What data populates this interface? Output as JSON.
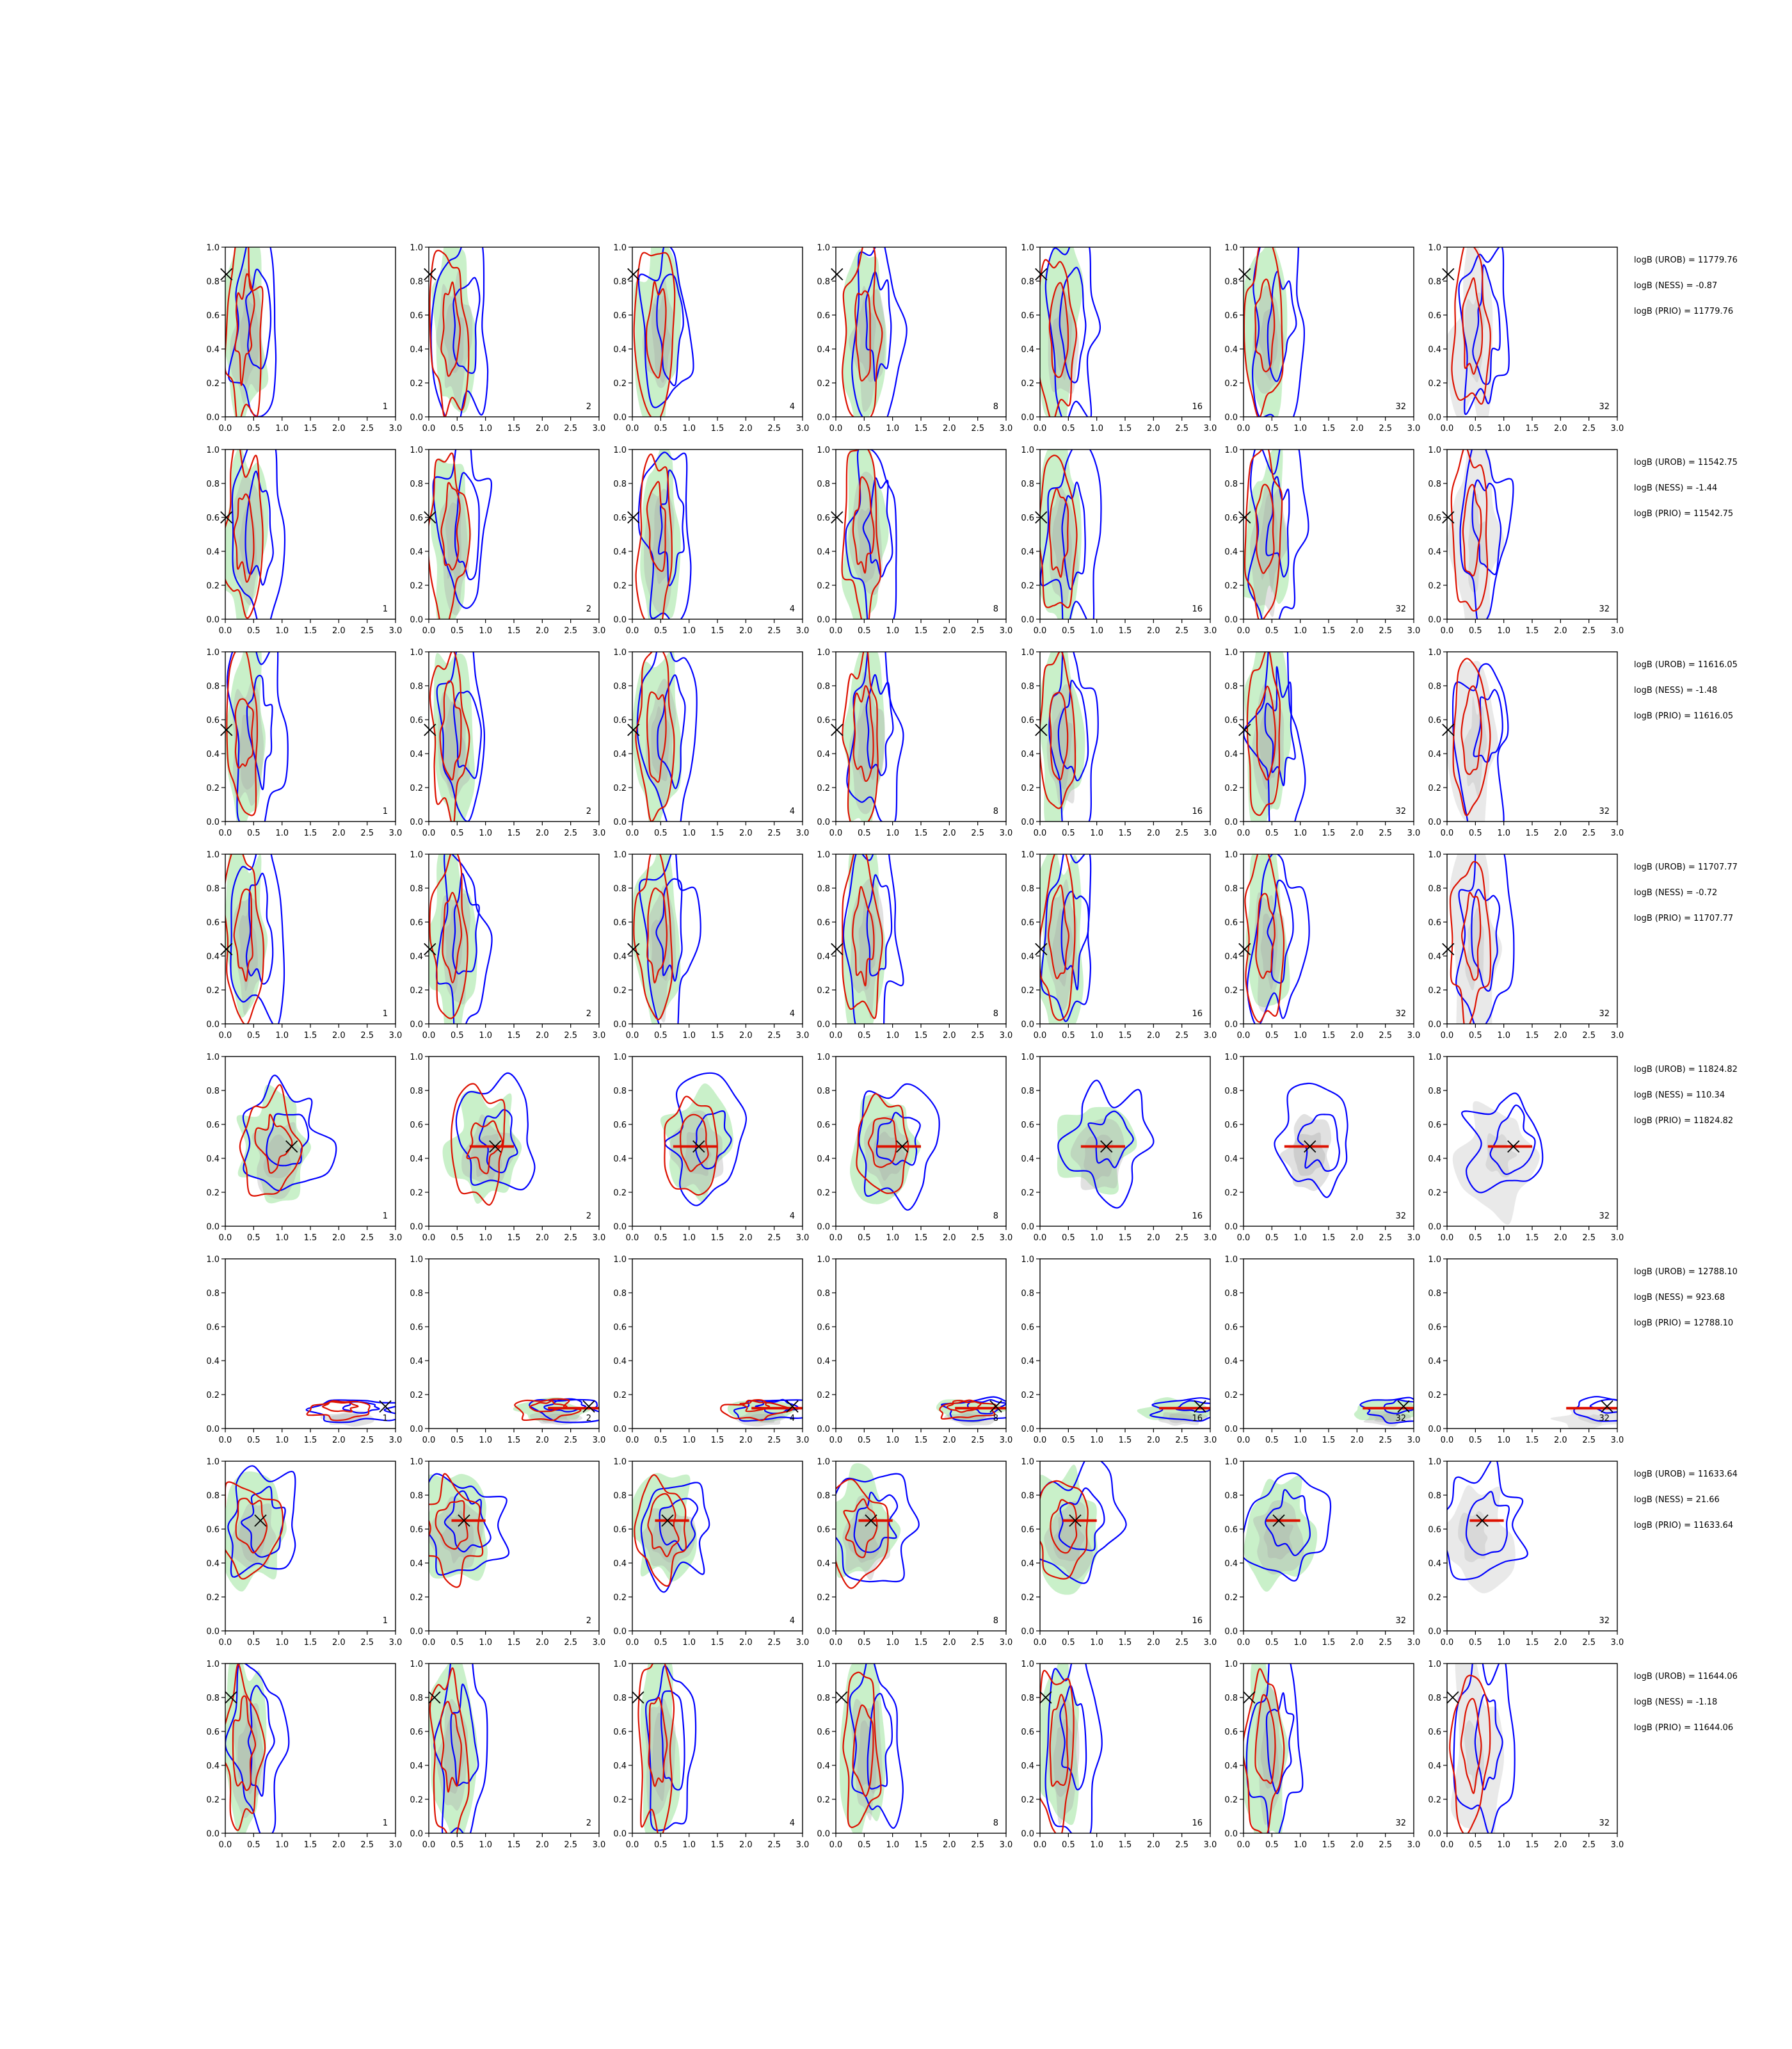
{
  "figure": {
    "type": "grid-of-contour-panels",
    "n_rows": 8,
    "n_cols": 7,
    "colors": {
      "green_fill": "#c9f0c9",
      "grey_fill": "#a8a8a8",
      "blue_line": "#0000ff",
      "red_line": "#dd1100",
      "marker": "#000000",
      "axes": "#000000"
    }
  },
  "chart_data": {
    "type": "contour",
    "xlim": [
      0.0,
      3.0
    ],
    "ylim": [
      0.0,
      1.0
    ],
    "xticks": [
      "0.0",
      "0.5",
      "1.0",
      "1.5",
      "2.0",
      "2.5",
      "3.0"
    ],
    "yticks": [
      "0.0",
      "0.2",
      "0.4",
      "0.6",
      "0.8",
      "1.0"
    ],
    "grid": false,
    "column_labels": [
      "1",
      "2",
      "4",
      "8",
      "16",
      "32",
      "32"
    ],
    "rows": [
      {
        "marker": [
          0.02,
          0.84
        ],
        "bar": null,
        "texts": [
          "logB (UROB) = 11779.76",
          "logB (NESS) = -0.87",
          "logB (PRIO) = 11779.76"
        ],
        "green": [
          0.55,
          0.5,
          0.5,
          0.45,
          0.55,
          0.4,
          0.0
        ],
        "grey": [
          0.55,
          0.5,
          0.5,
          0.55,
          0.4,
          0.5,
          0.85
        ],
        "red": [
          0.75,
          0.55,
          0.45,
          0.5,
          0.4,
          0.4,
          0.45
        ],
        "blue": [
          0.6,
          0.6,
          0.7,
          0.55,
          0.55,
          0.65,
          0.65
        ]
      },
      {
        "marker": [
          0.02,
          0.6
        ],
        "bar": null,
        "texts": [
          "logB (UROB) = 11542.75",
          "logB (NESS) = -1.44",
          "logB (PRIO) = 11542.75"
        ],
        "green": [
          0.5,
          0.5,
          0.5,
          0.45,
          0.4,
          0.9,
          0.0
        ],
        "grey": [
          0.45,
          0.45,
          0.45,
          0.5,
          0.4,
          0.7,
          0.7
        ],
        "red": [
          0.55,
          0.55,
          0.5,
          0.55,
          0.35,
          0.3,
          0.3
        ],
        "blue": [
          0.6,
          0.65,
          0.6,
          0.6,
          0.75,
          0.8,
          0.6
        ]
      },
      {
        "marker": [
          0.02,
          0.54
        ],
        "bar": null,
        "texts": [
          "logB (UROB) = 11616.05",
          "logB (NESS) = -1.48",
          "logB (PRIO) = 11616.05"
        ],
        "green": [
          0.5,
          0.55,
          0.5,
          0.45,
          0.45,
          0.5,
          0.0
        ],
        "grey": [
          0.45,
          0.55,
          0.45,
          0.5,
          0.45,
          0.4,
          0.8
        ],
        "red": [
          0.55,
          0.5,
          0.45,
          0.5,
          0.3,
          0.35,
          0.3
        ],
        "blue": [
          0.65,
          0.65,
          0.6,
          0.6,
          0.65,
          0.9,
          0.9
        ]
      },
      {
        "marker": [
          0.02,
          0.44
        ],
        "bar": null,
        "texts": [
          "logB (UROB) = 11707.77",
          "logB (NESS) = -0.72",
          "logB (PRIO) = 11707.77"
        ],
        "green": [
          0.5,
          0.55,
          0.55,
          0.5,
          0.55,
          0.5,
          0.0
        ],
        "grey": [
          0.5,
          0.5,
          0.55,
          0.5,
          0.45,
          0.5,
          0.6
        ],
        "red": [
          0.5,
          0.5,
          0.45,
          0.5,
          0.45,
          0.45,
          0.45
        ],
        "blue": [
          0.65,
          0.7,
          0.65,
          0.65,
          0.65,
          0.7,
          0.6
        ]
      },
      {
        "marker": [
          1.17,
          0.47
        ],
        "bar": [
          0.72,
          1.5,
          0.47
        ],
        "texts": [
          "logB (UROB) = 11824.82",
          "logB (NESS) = 110.34",
          "logB (PRIO) = 11824.82"
        ],
        "green": [
          0.6,
          0.55,
          0.55,
          0.55,
          0.6,
          0.0,
          0.0
        ],
        "grey": [
          0.5,
          0.5,
          0.5,
          0.5,
          0.45,
          0.55,
          0.65
        ],
        "red": [
          0.7,
          0.7,
          0.3,
          0.3,
          0.0,
          0.0,
          0.0
        ],
        "blue": [
          0.65,
          0.7,
          0.65,
          0.6,
          0.65,
          0.6,
          0.65
        ]
      },
      {
        "marker": [
          2.82,
          0.13
        ],
        "bar": [
          2.1,
          3.0,
          0.12
        ],
        "texts": [
          "logB (UROB) = 12788.10",
          "logB (NESS) = 923.68",
          "logB (PRIO) = 12788.10"
        ],
        "green": [
          0.0,
          0.45,
          0.4,
          0.45,
          0.45,
          0.45,
          0.0
        ],
        "grey": [
          0.45,
          0.45,
          0.4,
          0.4,
          0.4,
          0.4,
          0.75
        ],
        "red": [
          0.65,
          0.7,
          0.65,
          0.6,
          0.0,
          0.0,
          0.0
        ],
        "blue": [
          0.7,
          0.7,
          0.65,
          0.6,
          0.6,
          0.6,
          0.55
        ]
      },
      {
        "marker": [
          0.62,
          0.65
        ],
        "bar": [
          0.4,
          1.0,
          0.65
        ],
        "texts": [
          "logB (UROB) = 11633.64",
          "logB (NESS) = 21.66",
          "logB (PRIO) = 11633.64"
        ],
        "green": [
          0.5,
          0.55,
          0.55,
          0.55,
          0.6,
          0.55,
          0.0
        ],
        "grey": [
          0.45,
          0.5,
          0.45,
          0.5,
          0.45,
          0.45,
          0.75
        ],
        "red": [
          0.5,
          0.55,
          0.55,
          0.6,
          0.45,
          0.0,
          0.0
        ],
        "blue": [
          0.6,
          0.65,
          0.65,
          0.65,
          0.65,
          0.6,
          0.6
        ]
      },
      {
        "marker": [
          0.1,
          0.8
        ],
        "bar": null,
        "texts": [
          "logB (UROB) = 11644.06",
          "logB (NESS) = -1.18",
          "logB (PRIO) = 11644.06"
        ],
        "green": [
          0.45,
          0.5,
          0.5,
          0.55,
          0.5,
          0.5,
          0.0
        ],
        "grey": [
          0.5,
          0.45,
          0.45,
          0.55,
          0.5,
          0.5,
          0.85
        ],
        "red": [
          0.55,
          0.5,
          0.5,
          0.5,
          0.45,
          0.4,
          0.4
        ],
        "blue": [
          0.6,
          0.65,
          0.6,
          0.65,
          0.6,
          0.65,
          0.65
        ]
      }
    ]
  }
}
